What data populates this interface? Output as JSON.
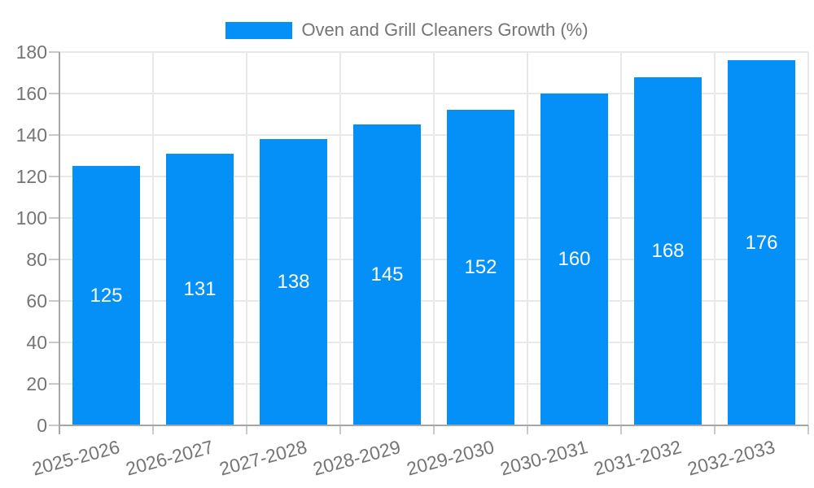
{
  "legend": {
    "label": "Oven and Grill Cleaners Growth (%)"
  },
  "colors": {
    "bar": "#0590f8",
    "axis_line": "#a6a6a6",
    "grid_line": "#e8e8e8",
    "tick_stub": "#c9c9c9",
    "text": "#757575",
    "bar_label": "#ffffff",
    "background": "#ffffff"
  },
  "chart_data": {
    "type": "bar",
    "title": "",
    "categories": [
      "2025-2026",
      "2026-2027",
      "2027-2028",
      "2028-2029",
      "2029-2030",
      "2030-2031",
      "2031-2032",
      "2032-2033"
    ],
    "series": [
      {
        "name": "Oven and Grill Cleaners Growth (%)",
        "values": [
          125,
          131,
          138,
          145,
          152,
          160,
          168,
          176
        ]
      }
    ],
    "bar_labels": [
      125,
      131,
      138,
      145,
      152,
      160,
      168,
      176
    ],
    "xlabel": "",
    "ylabel": "",
    "ylim": [
      0,
      180
    ],
    "yticks": [
      0,
      20,
      40,
      60,
      80,
      100,
      120,
      140,
      160,
      180
    ],
    "grid": true,
    "legend_position": "top",
    "x_label_rotation_deg": -15
  }
}
